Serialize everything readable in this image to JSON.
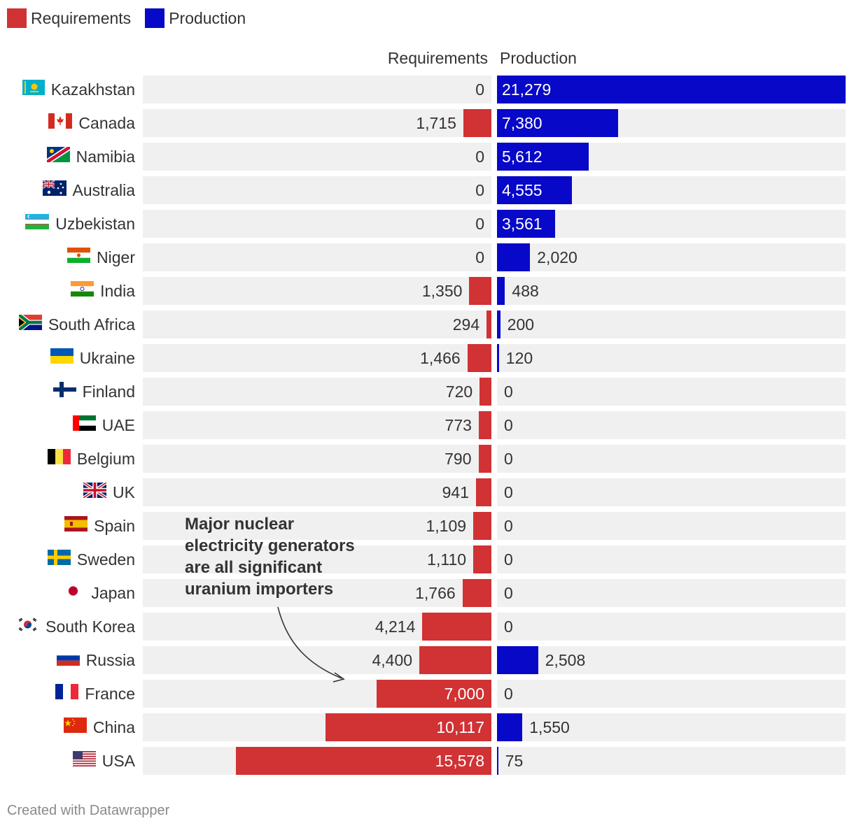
{
  "legend": [
    {
      "label": "Requirements",
      "color": "#d13234"
    },
    {
      "label": "Production",
      "color": "#0808c8"
    }
  ],
  "headers": {
    "requirements": "Requirements",
    "production": "Production"
  },
  "annotation": "Major nuclear electricity generators are all significant uranium importers",
  "footer": "Created with Datawrapper",
  "chart_data": {
    "type": "bar",
    "orientation": "horizontal-split",
    "categories": [
      "Kazakhstan",
      "Canada",
      "Namibia",
      "Australia",
      "Uzbekistan",
      "Niger",
      "India",
      "South Africa",
      "Ukraine",
      "Finland",
      "UAE",
      "Belgium",
      "UK",
      "Spain",
      "Sweden",
      "Japan",
      "South Korea",
      "Russia",
      "France",
      "China",
      "USA"
    ],
    "series": [
      {
        "name": "Requirements",
        "color": "#d13234",
        "values": [
          0,
          1715,
          0,
          0,
          0,
          0,
          1350,
          294,
          1466,
          720,
          773,
          790,
          941,
          1109,
          1110,
          1766,
          4214,
          4400,
          7000,
          10117,
          15578
        ],
        "labels": [
          "0",
          "1,715",
          "0",
          "0",
          "0",
          "0",
          "1,350",
          "294",
          "1,466",
          "720",
          "773",
          "790",
          "941",
          "1,109",
          "1,110",
          "1,766",
          "4,214",
          "4,400",
          "7,000",
          "10,117",
          "15,578"
        ]
      },
      {
        "name": "Production",
        "color": "#0808c8",
        "values": [
          21279,
          7380,
          5612,
          4555,
          3561,
          2020,
          488,
          200,
          120,
          0,
          0,
          0,
          0,
          0,
          0,
          0,
          0,
          2508,
          0,
          1550,
          75
        ],
        "labels": [
          "21,279",
          "7,380",
          "5,612",
          "4,555",
          "3,561",
          "2,020",
          "488",
          "200",
          "120",
          "0",
          "0",
          "0",
          "0",
          "0",
          "0",
          "0",
          "0",
          "2,508",
          "0",
          "1,550",
          "75"
        ]
      }
    ],
    "title": "",
    "xlim": [
      0,
      21279
    ]
  },
  "flags": [
    "flag-kazakhstan",
    "flag-canada",
    "flag-namibia",
    "flag-australia",
    "flag-uzbekistan",
    "flag-niger",
    "flag-india",
    "flag-south-africa",
    "flag-ukraine",
    "flag-finland",
    "flag-uae",
    "flag-belgium",
    "flag-uk",
    "flag-spain",
    "flag-sweden",
    "flag-japan",
    "flag-south-korea",
    "flag-russia",
    "flag-france",
    "flag-china",
    "flag-usa"
  ]
}
